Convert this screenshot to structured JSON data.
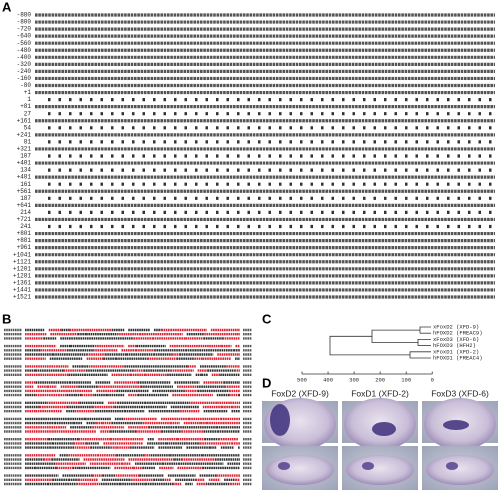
{
  "panel_a": {
    "label": "A",
    "rows": [
      {
        "number": "-880",
        "kind": "dna"
      },
      {
        "number": "-800",
        "kind": "dna"
      },
      {
        "number": "-720",
        "kind": "dna"
      },
      {
        "number": "-640",
        "kind": "dna"
      },
      {
        "number": "-560",
        "kind": "dna"
      },
      {
        "number": "-480",
        "kind": "dna"
      },
      {
        "number": "-400",
        "kind": "dna"
      },
      {
        "number": "-320",
        "kind": "dna"
      },
      {
        "number": "-240",
        "kind": "dna"
      },
      {
        "number": "-160",
        "kind": "dna"
      },
      {
        "number": "-80",
        "kind": "dna"
      },
      {
        "number": "+1",
        "kind": "dna"
      },
      {
        "number": "1",
        "kind": "protein"
      },
      {
        "number": "+81",
        "kind": "dna"
      },
      {
        "number": "27",
        "kind": "protein"
      },
      {
        "number": "+161",
        "kind": "dna"
      },
      {
        "number": "54",
        "kind": "protein"
      },
      {
        "number": "+241",
        "kind": "dna"
      },
      {
        "number": "81",
        "kind": "protein"
      },
      {
        "number": "+321",
        "kind": "dna"
      },
      {
        "number": "107",
        "kind": "protein"
      },
      {
        "number": "+401",
        "kind": "dna"
      },
      {
        "number": "134",
        "kind": "protein"
      },
      {
        "number": "+481",
        "kind": "dna"
      },
      {
        "number": "161",
        "kind": "protein"
      },
      {
        "number": "+561",
        "kind": "dna"
      },
      {
        "number": "187",
        "kind": "protein"
      },
      {
        "number": "+641",
        "kind": "dna"
      },
      {
        "number": "214",
        "kind": "protein"
      },
      {
        "number": "+721",
        "kind": "dna"
      },
      {
        "number": "241",
        "kind": "protein"
      },
      {
        "number": "+801",
        "kind": "dna"
      },
      {
        "number": "+881",
        "kind": "dna"
      },
      {
        "number": "+961",
        "kind": "dna"
      },
      {
        "number": "+1041",
        "kind": "dna"
      },
      {
        "number": "+1121",
        "kind": "dna"
      },
      {
        "number": "+1201",
        "kind": "dna"
      },
      {
        "number": "+1281",
        "kind": "dna"
      },
      {
        "number": "+1361",
        "kind": "dna"
      },
      {
        "number": "+1441",
        "kind": "dna"
      },
      {
        "number": "+1521",
        "kind": "dna"
      }
    ]
  },
  "panel_b": {
    "label": "B"
  },
  "panel_c": {
    "label": "C",
    "taxa": [
      "xFoxD2 (XFD-9)",
      "hFOXD2 (FREAC9)",
      "xFoxD3 (XFD-6)",
      "hFOXD3 (HFH2)",
      "xFoxD1 (XFD-2)",
      "hFOXD1 (FREAC4)"
    ],
    "axis_ticks": [
      500,
      400,
      300,
      200,
      100,
      0
    ]
  },
  "panel_d": {
    "label": "D",
    "columns": [
      "FoxD2 (XFD-9)",
      "FoxD1 (XFD-2)",
      "FoxD3 (XFD-6)"
    ]
  }
}
